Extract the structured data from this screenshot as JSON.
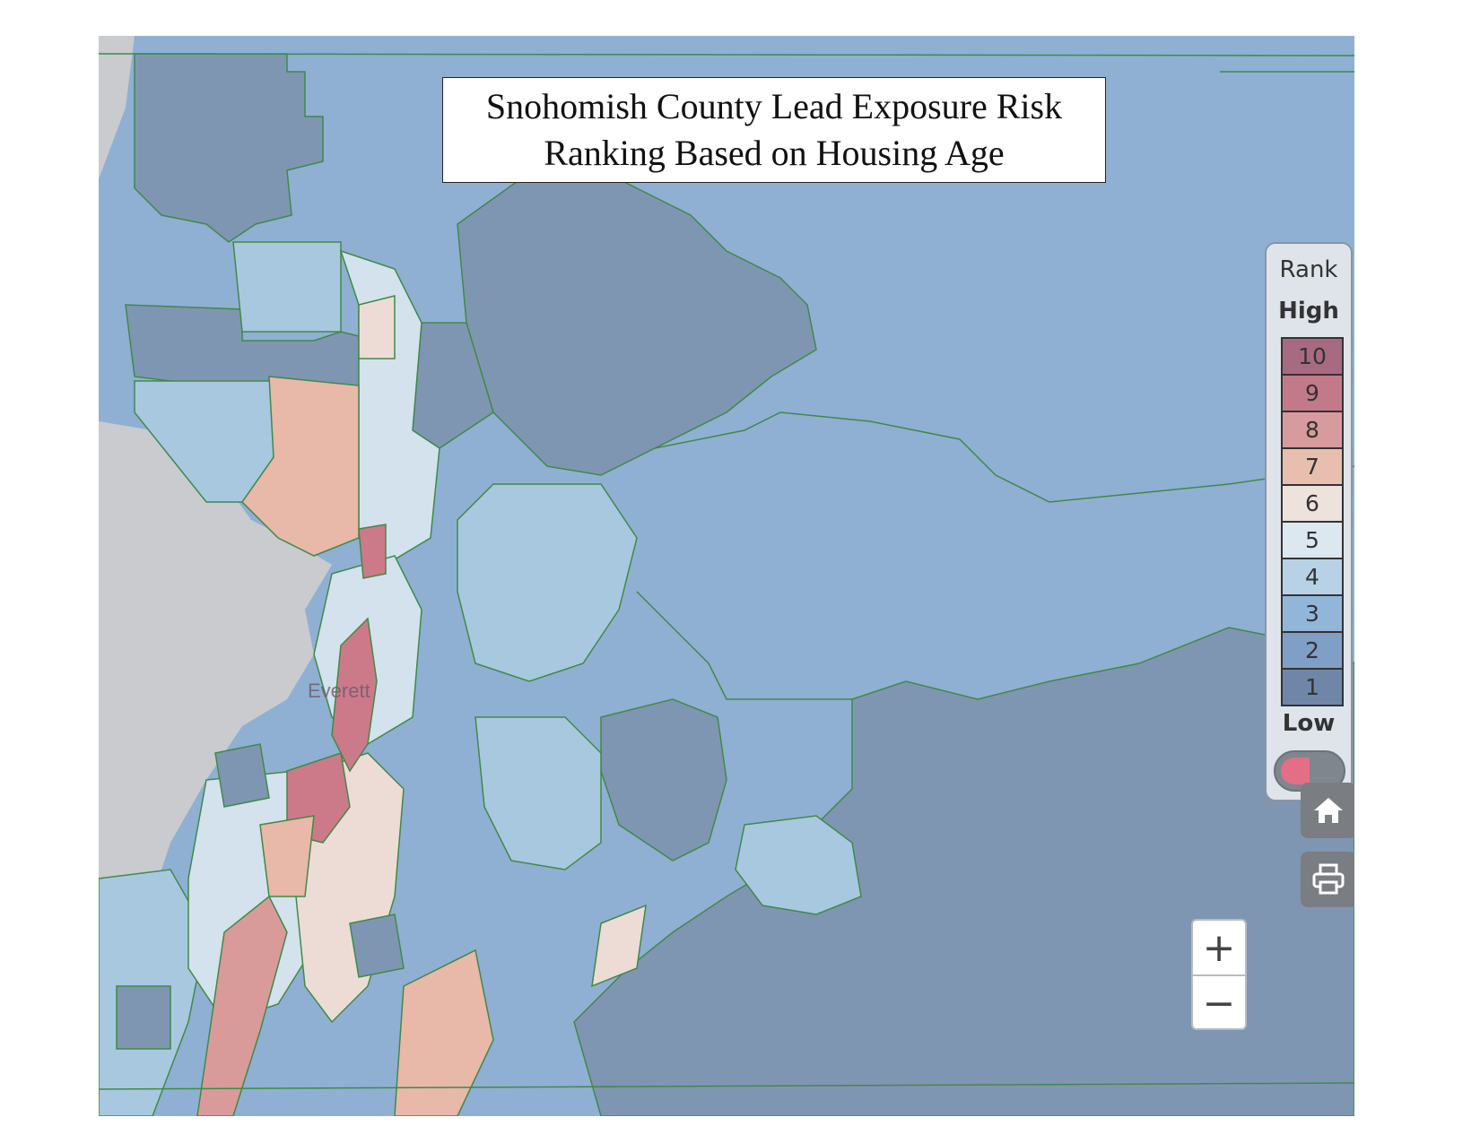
{
  "map": {
    "title_line1": "Snohomish County Lead Exposure Risk",
    "title_line2": "Ranking Based on Housing Age",
    "city_label": "Everett",
    "colors": {
      "water": "#c9cbcf",
      "boundary": "#3f8a47",
      "rank_1": "#7f96b2",
      "rank_2": "#7f9fc4",
      "rank_3": "#8fb0d2",
      "rank_4": "#a8c8e0",
      "rank_5": "#d3e2ec",
      "rank_6": "#ecdcd5",
      "rank_7": "#e8b8a8",
      "rank_8": "#d99a9a",
      "rank_9": "#cc7a8a",
      "rank_10": "#a86a80"
    }
  },
  "legend": {
    "title": "Rank",
    "high_label": "High",
    "low_label": "Low",
    "items": [
      {
        "label": "10",
        "color": "#a86a80"
      },
      {
        "label": "9",
        "color": "#c27a8a"
      },
      {
        "label": "8",
        "color": "#d79a9e"
      },
      {
        "label": "7",
        "color": "#e8bfae"
      },
      {
        "label": "6",
        "color": "#ede2dc"
      },
      {
        "label": "5",
        "color": "#dce8f0"
      },
      {
        "label": "4",
        "color": "#b7d2e6"
      },
      {
        "label": "3",
        "color": "#92b6da"
      },
      {
        "label": "2",
        "color": "#7f9fc6"
      },
      {
        "label": "1",
        "color": "#6f86a8"
      }
    ],
    "toggle": "legend-visibility-toggle"
  },
  "controls": {
    "home_icon": "home-icon",
    "print_icon": "print-icon",
    "zoom_in_label": "+",
    "zoom_out_label": "−"
  }
}
